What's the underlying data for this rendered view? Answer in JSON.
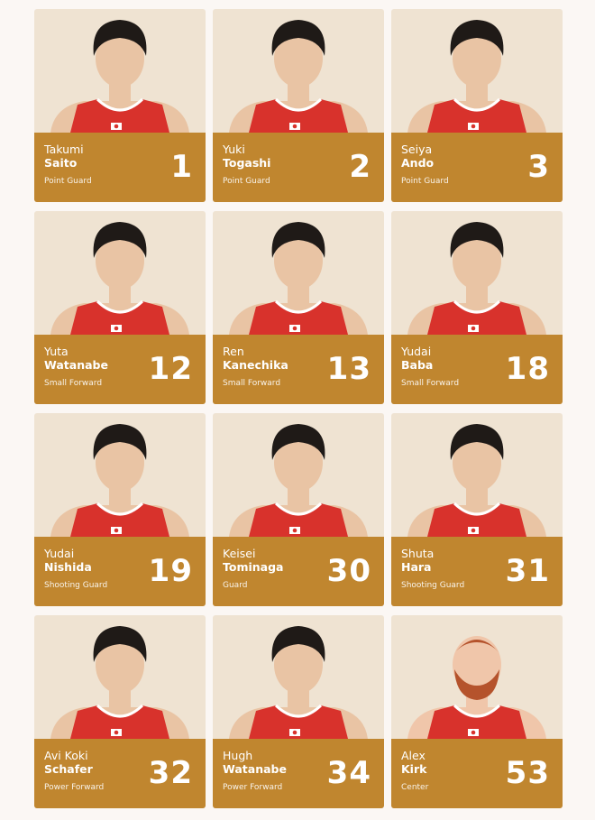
{
  "players": [
    {
      "first_name": "Takumi",
      "last_name": "Saito",
      "number": "1",
      "position": "Point Guard"
    },
    {
      "first_name": "Yuki",
      "last_name": "Togashi",
      "number": "2",
      "position": "Point Guard"
    },
    {
      "first_name": "Seiya",
      "last_name": "Ando",
      "number": "3",
      "position": "Point Guard"
    },
    {
      "first_name": "Yuta",
      "last_name": "Watanabe",
      "number": "12",
      "position": "Small Forward"
    },
    {
      "first_name": "Ren",
      "last_name": "Kanechika",
      "number": "13",
      "position": "Small Forward"
    },
    {
      "first_name": "Yudai",
      "last_name": "Baba",
      "number": "18",
      "position": "Small Forward"
    },
    {
      "first_name": "Yudai",
      "last_name": "Nishida",
      "number": "19",
      "position": "Shooting Guard"
    },
    {
      "first_name": "Keisei",
      "last_name": "Tominaga",
      "number": "30",
      "position": "Guard"
    },
    {
      "first_name": "Shuta",
      "last_name": "Hara",
      "number": "31",
      "position": "Shooting Guard"
    },
    {
      "first_name": "Avi Koki",
      "last_name": "Schafer",
      "number": "32",
      "position": "Power Forward"
    },
    {
      "first_name": "Hugh",
      "last_name": "Watanabe",
      "number": "34",
      "position": "Power Forward"
    },
    {
      "first_name": "Alex",
      "last_name": "Kirk",
      "number": "53",
      "position": "Center"
    }
  ]
}
